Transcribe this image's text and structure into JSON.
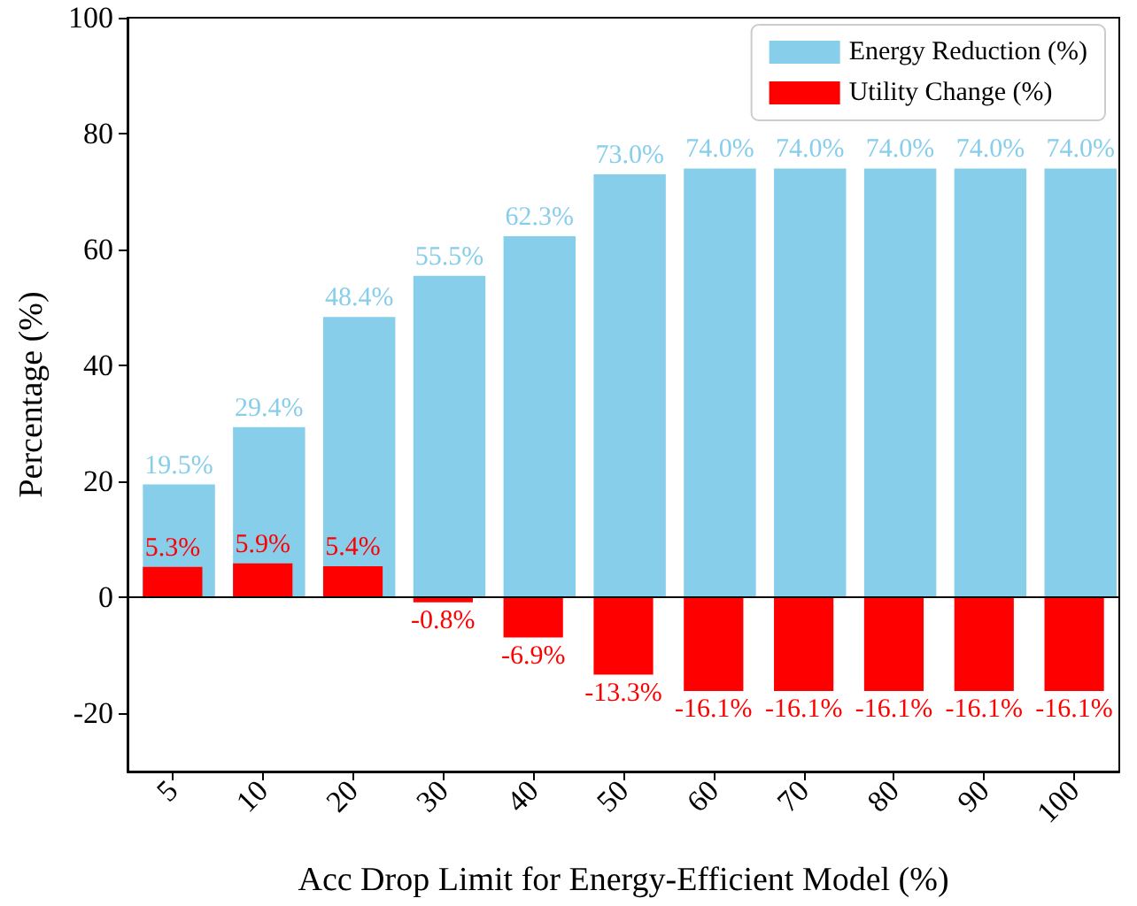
{
  "chart_data": {
    "type": "bar",
    "xlabel": "Acc Drop Limit for Energy-Efficient Model (%)",
    "ylabel": "Percentage (%)",
    "categories": [
      "5",
      "10",
      "20",
      "30",
      "40",
      "50",
      "60",
      "70",
      "80",
      "90",
      "100"
    ],
    "series": [
      {
        "name": "Energy Reduction (%)",
        "color": "#87ceeb",
        "values": [
          19.5,
          29.4,
          48.4,
          55.5,
          62.3,
          73.0,
          74.0,
          74.0,
          74.0,
          74.0,
          74.0
        ],
        "value_labels": [
          "19.5%",
          "29.4%",
          "48.4%",
          "55.5%",
          "62.3%",
          "73.0%",
          "74.0%",
          "74.0%",
          "74.0%",
          "74.0%",
          "74.0%"
        ]
      },
      {
        "name": "Utility Change (%)",
        "color": "#ff0000",
        "values": [
          5.3,
          5.9,
          5.4,
          -0.8,
          -6.9,
          -13.3,
          -16.1,
          -16.1,
          -16.1,
          -16.1,
          -16.1
        ],
        "value_labels": [
          "5.3%",
          "5.9%",
          "5.4%",
          "-0.8%",
          "-6.9%",
          "-13.3%",
          "-16.1%",
          "-16.1%",
          "-16.1%",
          "-16.1%",
          "-16.1%"
        ]
      }
    ],
    "ylim": [
      -30,
      100
    ],
    "yticks": [
      -20,
      0,
      20,
      40,
      60,
      80,
      100
    ],
    "ref_lines": [
      {
        "axis": "y",
        "value": 0,
        "color": "#000000"
      }
    ],
    "legend": "top right",
    "grid": false
  }
}
